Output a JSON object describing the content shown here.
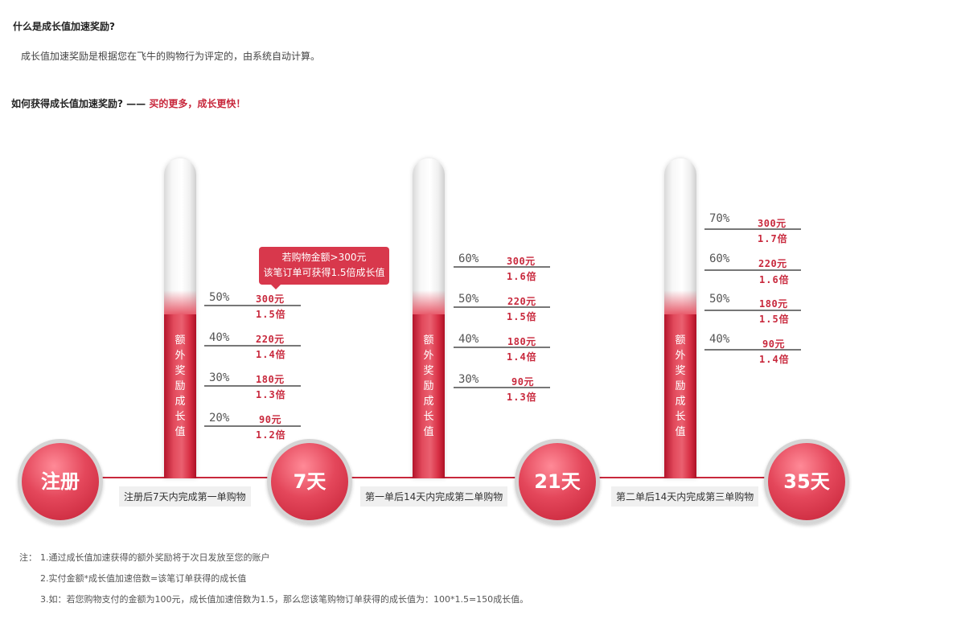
{
  "section1": {
    "title": "什么是成长值加速奖励?",
    "desc": "成长值加速奖励是根据您在飞牛的购物行为评定的，由系统自动计算。"
  },
  "section2": {
    "title": "如何获得成长值加速奖励? —— ",
    "title_highlight": "买的更多，成长更快！"
  },
  "tooltip": {
    "line1": "若购物金额>300元",
    "line2": "该笔订单可获得1.5倍成长值"
  },
  "tube_label": [
    "额",
    "外",
    "奖",
    "励",
    "成",
    "长",
    "值"
  ],
  "tubes": [
    {
      "rows": [
        {
          "pct": "50%",
          "amount": "300元",
          "mult": "1.5倍"
        },
        {
          "pct": "40%",
          "amount": "220元",
          "mult": "1.4倍"
        },
        {
          "pct": "30%",
          "amount": "180元",
          "mult": "1.3倍"
        },
        {
          "pct": "20%",
          "amount": "90元",
          "mult": "1.2倍"
        }
      ]
    },
    {
      "rows": [
        {
          "pct": "60%",
          "amount": "300元",
          "mult": "1.6倍"
        },
        {
          "pct": "50%",
          "amount": "220元",
          "mult": "1.5倍"
        },
        {
          "pct": "40%",
          "amount": "180元",
          "mult": "1.4倍"
        },
        {
          "pct": "30%",
          "amount": "90元",
          "mult": "1.3倍"
        }
      ]
    },
    {
      "rows": [
        {
          "pct": "70%",
          "amount": "300元",
          "mult": "1.7倍"
        },
        {
          "pct": "60%",
          "amount": "220元",
          "mult": "1.6倍"
        },
        {
          "pct": "50%",
          "amount": "180元",
          "mult": "1.5倍"
        },
        {
          "pct": "40%",
          "amount": "90元",
          "mult": "1.4倍"
        }
      ]
    }
  ],
  "milestones": [
    "注册",
    "7天",
    "21天",
    "35天"
  ],
  "steps": [
    "注册后7天内完成第一单购物",
    "第一单后14天内完成第二单购物",
    "第二单后14天内完成第三单购物"
  ],
  "notes": {
    "prefix": "注：",
    "items": [
      "1.通过成长值加速获得的额外奖励将于次日发放至您的账户",
      "2.实付金额*成长值加速倍数=该笔订单获得的成长值",
      "3.如：若您购物支付的金额为100元，成长值加速倍数为1.5，那么您该笔购物订单获得的成长值为：100*1.5=150成长值。"
    ]
  }
}
